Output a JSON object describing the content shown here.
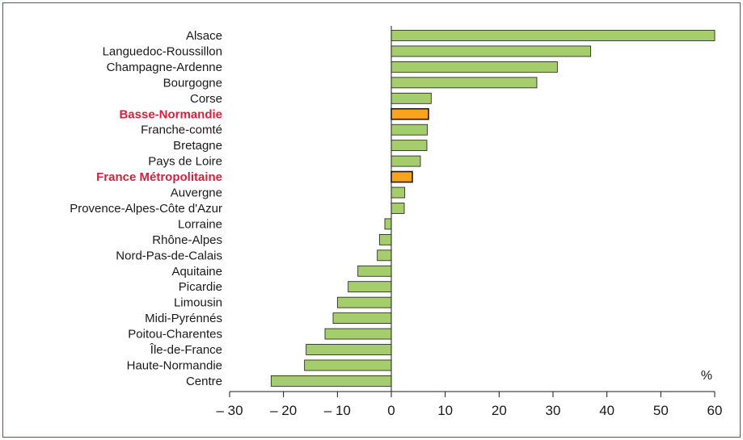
{
  "chart_data": {
    "type": "bar",
    "orientation": "horizontal",
    "unit_label": "%",
    "xlim": [
      -30,
      60
    ],
    "xticks": [
      "– 30",
      "– 20",
      "– 10",
      "0",
      "10",
      "20",
      "30",
      "40",
      "50",
      "60"
    ],
    "xtick_values": [
      -30,
      -20,
      -10,
      0,
      10,
      20,
      30,
      40,
      50,
      60
    ],
    "categories": [
      "Alsace",
      "Languedoc-Roussillon",
      "Champagne-Ardenne",
      "Bourgogne",
      "Corse",
      "Basse-Normandie",
      "Franche-comté",
      "Bretagne",
      "Pays de Loire",
      "France Métropolitaine",
      "Auvergne",
      "Provence-Alpes-Côte d'Azur",
      "Lorraine",
      "Rhône-Alpes",
      "Nord-Pas-de-Calais",
      "Aquitaine",
      "Picardie",
      "Limousin",
      "Midi-Pyrénnés",
      "Poitou-Charentes",
      "Île-de-France",
      "Haute-Normandie",
      "Centre"
    ],
    "values": [
      60,
      37,
      30.8,
      27,
      7.4,
      6.9,
      6.7,
      6.6,
      5.4,
      3.9,
      2.5,
      2.4,
      -1.2,
      -2.2,
      -2.6,
      -6.2,
      -8,
      -10,
      -10.8,
      -12.3,
      -15.8,
      -16.1,
      -22.3
    ],
    "highlighted": [
      "Basse-Normandie",
      "France Métropolitaine"
    ],
    "colors": {
      "bar": "#a5cd6c",
      "highlight_bar": "#f9a41d",
      "highlight_text": "#d81e3c",
      "frame": "#d81e3c"
    }
  }
}
